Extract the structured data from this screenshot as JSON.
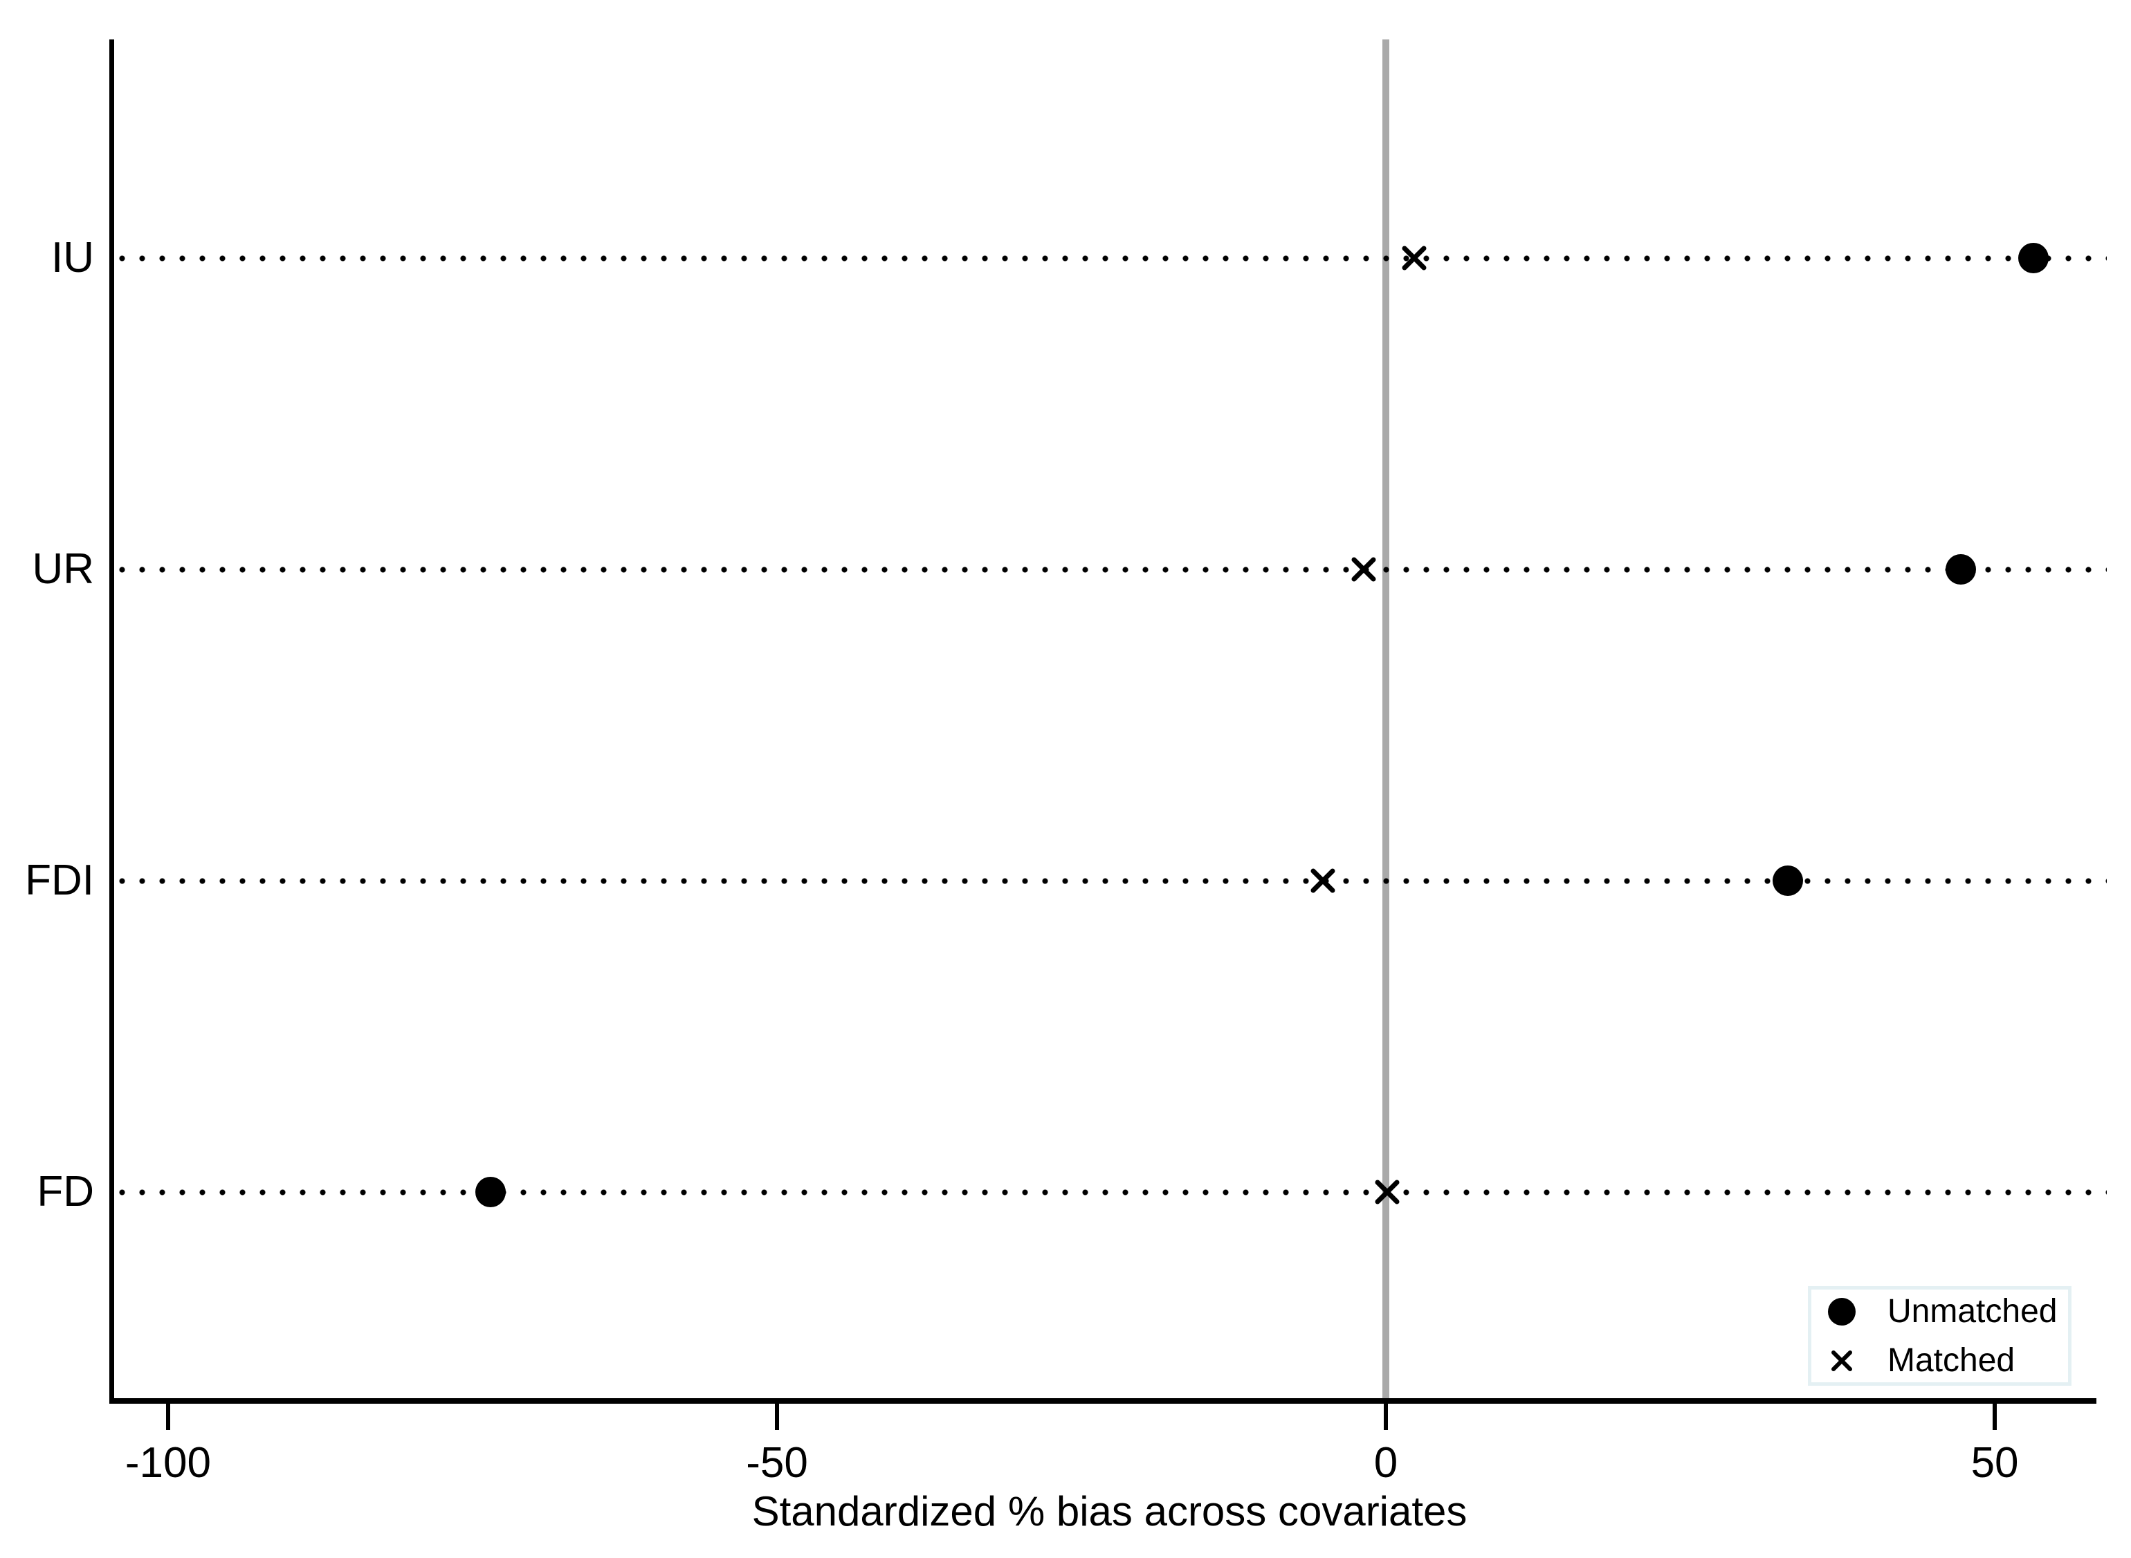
{
  "chart_data": {
    "type": "scatter",
    "title": "",
    "xlabel": "Standardized % bias across covariates",
    "ylabel": "",
    "categories": [
      "IU",
      "UR",
      "FDI",
      "FD"
    ],
    "series": [
      {
        "name": "Unmatched",
        "marker": "circle",
        "values": [
          53.2,
          47.2,
          33.0,
          -73.5
        ]
      },
      {
        "name": "Matched",
        "marker": "x",
        "values": [
          2.3,
          -1.8,
          -5.2,
          0.1
        ]
      }
    ],
    "x_ticks": [
      "-100",
      "-50",
      "0",
      "50"
    ],
    "x_tick_values": [
      -100,
      -50,
      0,
      50
    ],
    "xlim": [
      -104.6,
      59.2
    ],
    "reference_line_x": 0,
    "grid": "horizontal-dotted",
    "legend_position": "bottom-right"
  },
  "legend": {
    "items": [
      {
        "label": "Unmatched",
        "marker": "circle-icon"
      },
      {
        "label": "Matched",
        "marker": "x-icon"
      }
    ]
  },
  "colors": {
    "marker": "#000000",
    "axis": "#000000",
    "reference_line": "#a9a9a9",
    "legend_border": "#e4f0f3",
    "background": "#ffffff",
    "text": "#000000"
  }
}
